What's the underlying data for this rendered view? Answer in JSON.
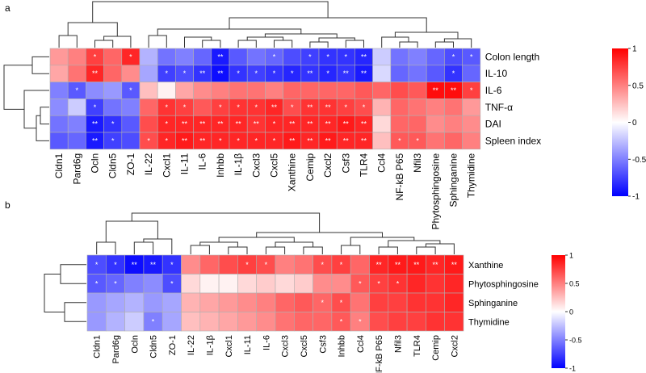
{
  "chart_data": [
    {
      "type": "heatmap",
      "panel_label": "a",
      "rows": [
        "Colon length",
        "IL-10",
        "IL-6",
        "TNF-α",
        "DAI",
        "Spleen index"
      ],
      "columns": [
        "Cldn1",
        "Pard6g",
        "Ocln",
        "Cldn5",
        "ZO-1",
        "IL-22",
        "Cxcl1",
        "IL-11",
        "IL-6",
        "Inhbb",
        "IL-1β",
        "Cxcl3",
        "Cxcl5",
        "Xanthine",
        "Cemip",
        "Cxcl2",
        "Csf3",
        "TLR4",
        "Ccl4",
        "NF-kB P65",
        "Nfil3",
        "Phytosphingosine",
        "Sphinganine",
        "Thymidine"
      ],
      "values": [
        [
          0.4,
          0.5,
          0.75,
          0.6,
          0.85,
          -0.3,
          -0.55,
          -0.5,
          -0.6,
          -0.9,
          -0.65,
          -0.55,
          -0.6,
          -0.7,
          -0.75,
          -0.8,
          -0.8,
          -0.85,
          -0.2,
          -0.55,
          -0.5,
          -0.6,
          -0.7,
          -0.65
        ],
        [
          0.35,
          0.55,
          0.85,
          0.6,
          0.45,
          -0.35,
          -0.75,
          -0.7,
          -0.8,
          -0.95,
          -0.8,
          -0.75,
          -0.8,
          -0.85,
          -0.8,
          -0.85,
          -0.8,
          -0.9,
          -0.15,
          -0.6,
          -0.55,
          -0.65,
          -0.8,
          -0.6
        ],
        [
          -0.5,
          -0.65,
          -0.45,
          -0.4,
          -0.65,
          0.25,
          0.05,
          0.35,
          0.45,
          0.5,
          0.55,
          0.55,
          0.5,
          0.6,
          0.6,
          0.6,
          0.6,
          0.65,
          0.6,
          0.7,
          0.65,
          0.95,
          0.95,
          0.75
        ],
        [
          -0.45,
          -0.2,
          -0.75,
          -0.55,
          -0.5,
          0.6,
          0.8,
          0.75,
          0.65,
          0.75,
          0.8,
          0.8,
          0.85,
          0.7,
          0.8,
          0.8,
          0.75,
          0.7,
          0.3,
          0.6,
          0.55,
          0.5,
          0.55,
          0.4
        ],
        [
          -0.55,
          -0.5,
          -0.9,
          -0.8,
          -0.65,
          0.7,
          0.85,
          0.85,
          0.85,
          0.85,
          0.85,
          0.8,
          0.85,
          0.85,
          0.85,
          0.85,
          0.9,
          0.85,
          0.15,
          0.6,
          0.6,
          0.45,
          0.5,
          0.45
        ],
        [
          -0.65,
          -0.6,
          -0.9,
          -0.75,
          -0.7,
          0.7,
          0.85,
          0.9,
          0.85,
          0.85,
          0.85,
          0.85,
          0.85,
          0.9,
          0.85,
          0.9,
          0.85,
          0.85,
          0.25,
          0.65,
          0.65,
          0.55,
          0.6,
          0.5
        ]
      ],
      "significance": [
        [
          "",
          "",
          "*",
          "",
          "*",
          "",
          "",
          "",
          "",
          "**",
          "",
          "",
          "*",
          "",
          "*",
          "*",
          "*",
          "**",
          "",
          "",
          "",
          "",
          "*",
          "*"
        ],
        [
          "",
          "",
          "**",
          "",
          "",
          "",
          "*",
          "*",
          "**",
          "**",
          "*",
          "*",
          "*",
          "*",
          "**",
          "*",
          "**",
          "**",
          "",
          "",
          "",
          "",
          "*",
          ""
        ],
        [
          "",
          "*",
          "",
          "",
          "*",
          "",
          "",
          "",
          "",
          "",
          "",
          "",
          "",
          "",
          "",
          "",
          "",
          "",
          "",
          "",
          "",
          "**",
          "**",
          "*"
        ],
        [
          "",
          "",
          "*",
          "",
          "",
          "",
          "*",
          "*",
          "",
          "*",
          "*",
          "*",
          "**",
          "*",
          "**",
          "**",
          "*",
          "*",
          "",
          "",
          "",
          "",
          "",
          ""
        ],
        [
          "",
          "",
          "**",
          "*",
          "",
          "",
          "*",
          "**",
          "**",
          "**",
          "**",
          "**",
          "*",
          "**",
          "**",
          "**",
          "**",
          "**",
          "",
          "",
          "",
          "",
          "",
          ""
        ],
        [
          "",
          "",
          "**",
          "*",
          "",
          "*",
          "*",
          "**",
          "**",
          "*",
          "*",
          "*",
          "*",
          "**",
          "**",
          "**",
          "**",
          "**",
          "",
          "*",
          "*",
          "",
          "",
          ""
        ]
      ],
      "colorbar": {
        "ticks": [
          1,
          0.5,
          0,
          -0.5,
          -1
        ],
        "tick_labels": [
          "1",
          "0.5",
          "0",
          "-0.5",
          "-1"
        ],
        "range": [
          -1,
          1
        ]
      },
      "colors": {
        "low": "#0000ff",
        "mid": "#ffffff",
        "high": "#ff0000"
      }
    },
    {
      "type": "heatmap",
      "panel_label": "b",
      "rows": [
        "Xanthine",
        "Phytosphingosine",
        "Sphinganine",
        "Thymidine"
      ],
      "columns": [
        "Cldn1",
        "Pard6g",
        "Ocln",
        "Cldn5",
        "ZO-1",
        "IL-22",
        "IL-1β",
        "Cxcl1",
        "IL-11",
        "IL-6",
        "Cxcl3",
        "Cxcl5",
        "Csf3",
        "Inhbb",
        "Ccl4",
        "NF-kB P65",
        "Nfil3",
        "TLR4",
        "Cemip",
        "Cxcl2"
      ],
      "values": [
        [
          -0.7,
          -0.8,
          -0.95,
          -0.9,
          -0.8,
          0.45,
          0.6,
          0.7,
          0.75,
          0.7,
          0.5,
          0.55,
          0.7,
          0.75,
          0.6,
          0.85,
          0.9,
          0.9,
          0.85,
          0.9
        ],
        [
          -0.65,
          -0.6,
          -0.5,
          -0.45,
          -0.7,
          0.15,
          0.05,
          0.05,
          0.15,
          0.2,
          0.15,
          0.2,
          0.45,
          0.45,
          0.65,
          0.75,
          0.8,
          0.85,
          0.8,
          0.85
        ],
        [
          -0.4,
          -0.35,
          -0.3,
          -0.4,
          -0.35,
          0.3,
          0.35,
          0.4,
          0.45,
          0.5,
          0.6,
          0.65,
          0.6,
          0.7,
          0.55,
          0.75,
          0.75,
          0.8,
          0.8,
          0.85
        ],
        [
          -0.4,
          -0.3,
          -0.2,
          -0.5,
          -0.35,
          0.25,
          0.3,
          0.35,
          0.4,
          0.45,
          0.55,
          0.6,
          0.6,
          0.65,
          0.5,
          0.7,
          0.75,
          0.75,
          0.8,
          0.8
        ]
      ],
      "significance": [
        [
          "*",
          "*",
          "**",
          "**",
          "*",
          "",
          "",
          "",
          "*",
          "*",
          "",
          "",
          "*",
          "*",
          "",
          "**",
          "**",
          "**",
          "**",
          "**"
        ],
        [
          "*",
          "*",
          "",
          "",
          "*",
          "",
          "",
          "",
          "",
          "",
          "",
          "",
          "",
          "",
          "*",
          "*",
          "*",
          "",
          "",
          ""
        ],
        [
          "",
          "",
          "",
          "",
          "",
          "",
          "",
          "",
          "",
          "",
          "",
          "",
          "*",
          "*",
          "",
          "",
          "",
          "",
          "",
          ""
        ],
        [
          "",
          "",
          "",
          "*",
          "",
          "",
          "",
          "",
          "",
          "",
          "",
          "",
          "",
          "*",
          "*",
          "",
          "",
          "",
          "",
          ""
        ]
      ],
      "colorbar": {
        "ticks": [
          1,
          0.5,
          0,
          -0.5,
          -1
        ],
        "tick_labels": [
          "1",
          "0.5",
          "0",
          "-0.5",
          "-1"
        ],
        "range": [
          -1,
          1
        ]
      },
      "colors": {
        "low": "#0000ff",
        "mid": "#ffffff",
        "high": "#ff0000"
      }
    }
  ]
}
